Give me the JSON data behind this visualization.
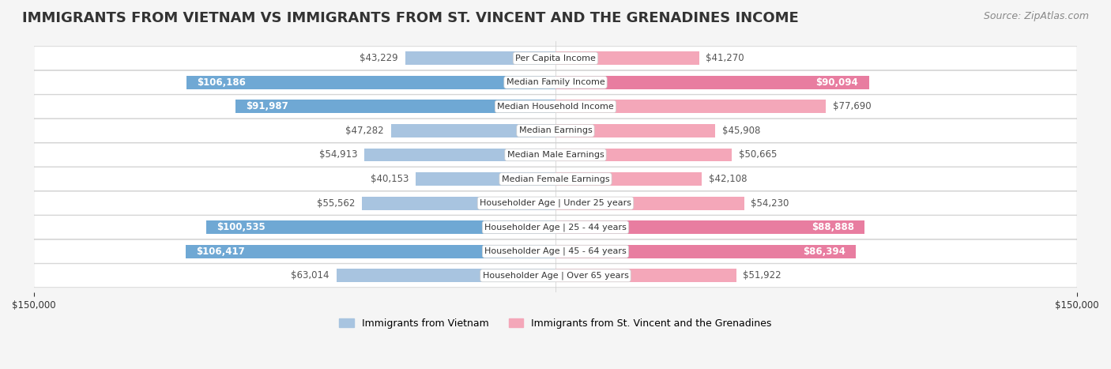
{
  "title": "IMMIGRANTS FROM VIETNAM VS IMMIGRANTS FROM ST. VINCENT AND THE GRENADINES INCOME",
  "source": "Source: ZipAtlas.com",
  "categories": [
    "Per Capita Income",
    "Median Family Income",
    "Median Household Income",
    "Median Earnings",
    "Median Male Earnings",
    "Median Female Earnings",
    "Householder Age | Under 25 years",
    "Householder Age | 25 - 44 years",
    "Householder Age | 45 - 64 years",
    "Householder Age | Over 65 years"
  ],
  "vietnam_values": [
    43229,
    106186,
    91987,
    47282,
    54913,
    40153,
    55562,
    100535,
    106417,
    63014
  ],
  "grenadines_values": [
    41270,
    90094,
    77690,
    45908,
    50665,
    42108,
    54230,
    88888,
    86394,
    51922
  ],
  "vietnam_color": "#a8c4e0",
  "vietnam_color_dark": "#6fa8d4",
  "grenadines_color": "#f4a7b9",
  "grenadines_color_dark": "#e87da0",
  "background_color": "#f5f5f5",
  "row_bg_color": "#ffffff",
  "xlim": 150000,
  "legend_label_vietnam": "Immigrants from Vietnam",
  "legend_label_grenadines": "Immigrants from St. Vincent and the Grenadines",
  "title_fontsize": 13,
  "source_fontsize": 9,
  "label_fontsize": 8,
  "bar_label_fontsize": 8.5
}
